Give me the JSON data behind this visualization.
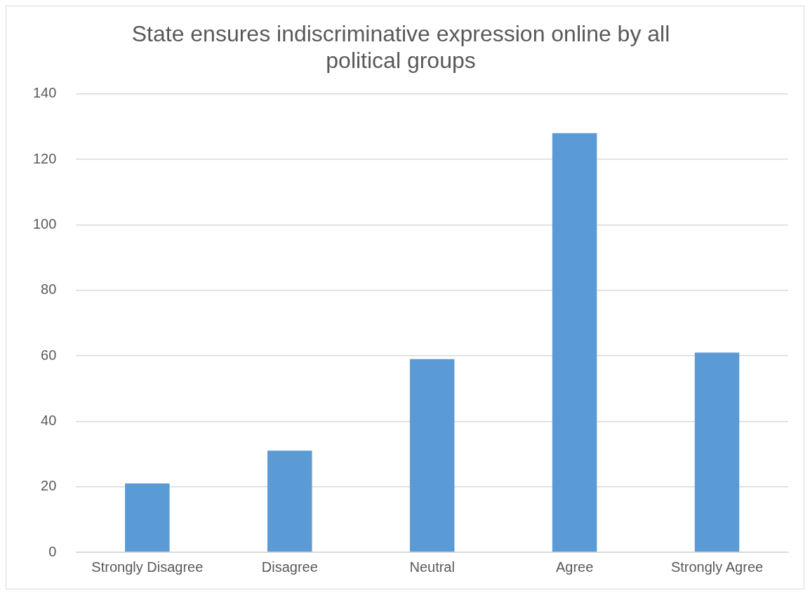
{
  "chart_data": {
    "type": "bar",
    "title": "State ensures indiscriminative expression online by all political groups",
    "categories": [
      "Strongly Disagree",
      "Disagree",
      "Neutral",
      "Agree",
      "Strongly Agree"
    ],
    "values": [
      21,
      31,
      59,
      128,
      61
    ],
    "color": "#5b9bd5",
    "ylim": [
      0,
      140
    ],
    "yticks": [
      0,
      20,
      40,
      60,
      80,
      100,
      120,
      140
    ],
    "grid": "y",
    "legend": false
  }
}
